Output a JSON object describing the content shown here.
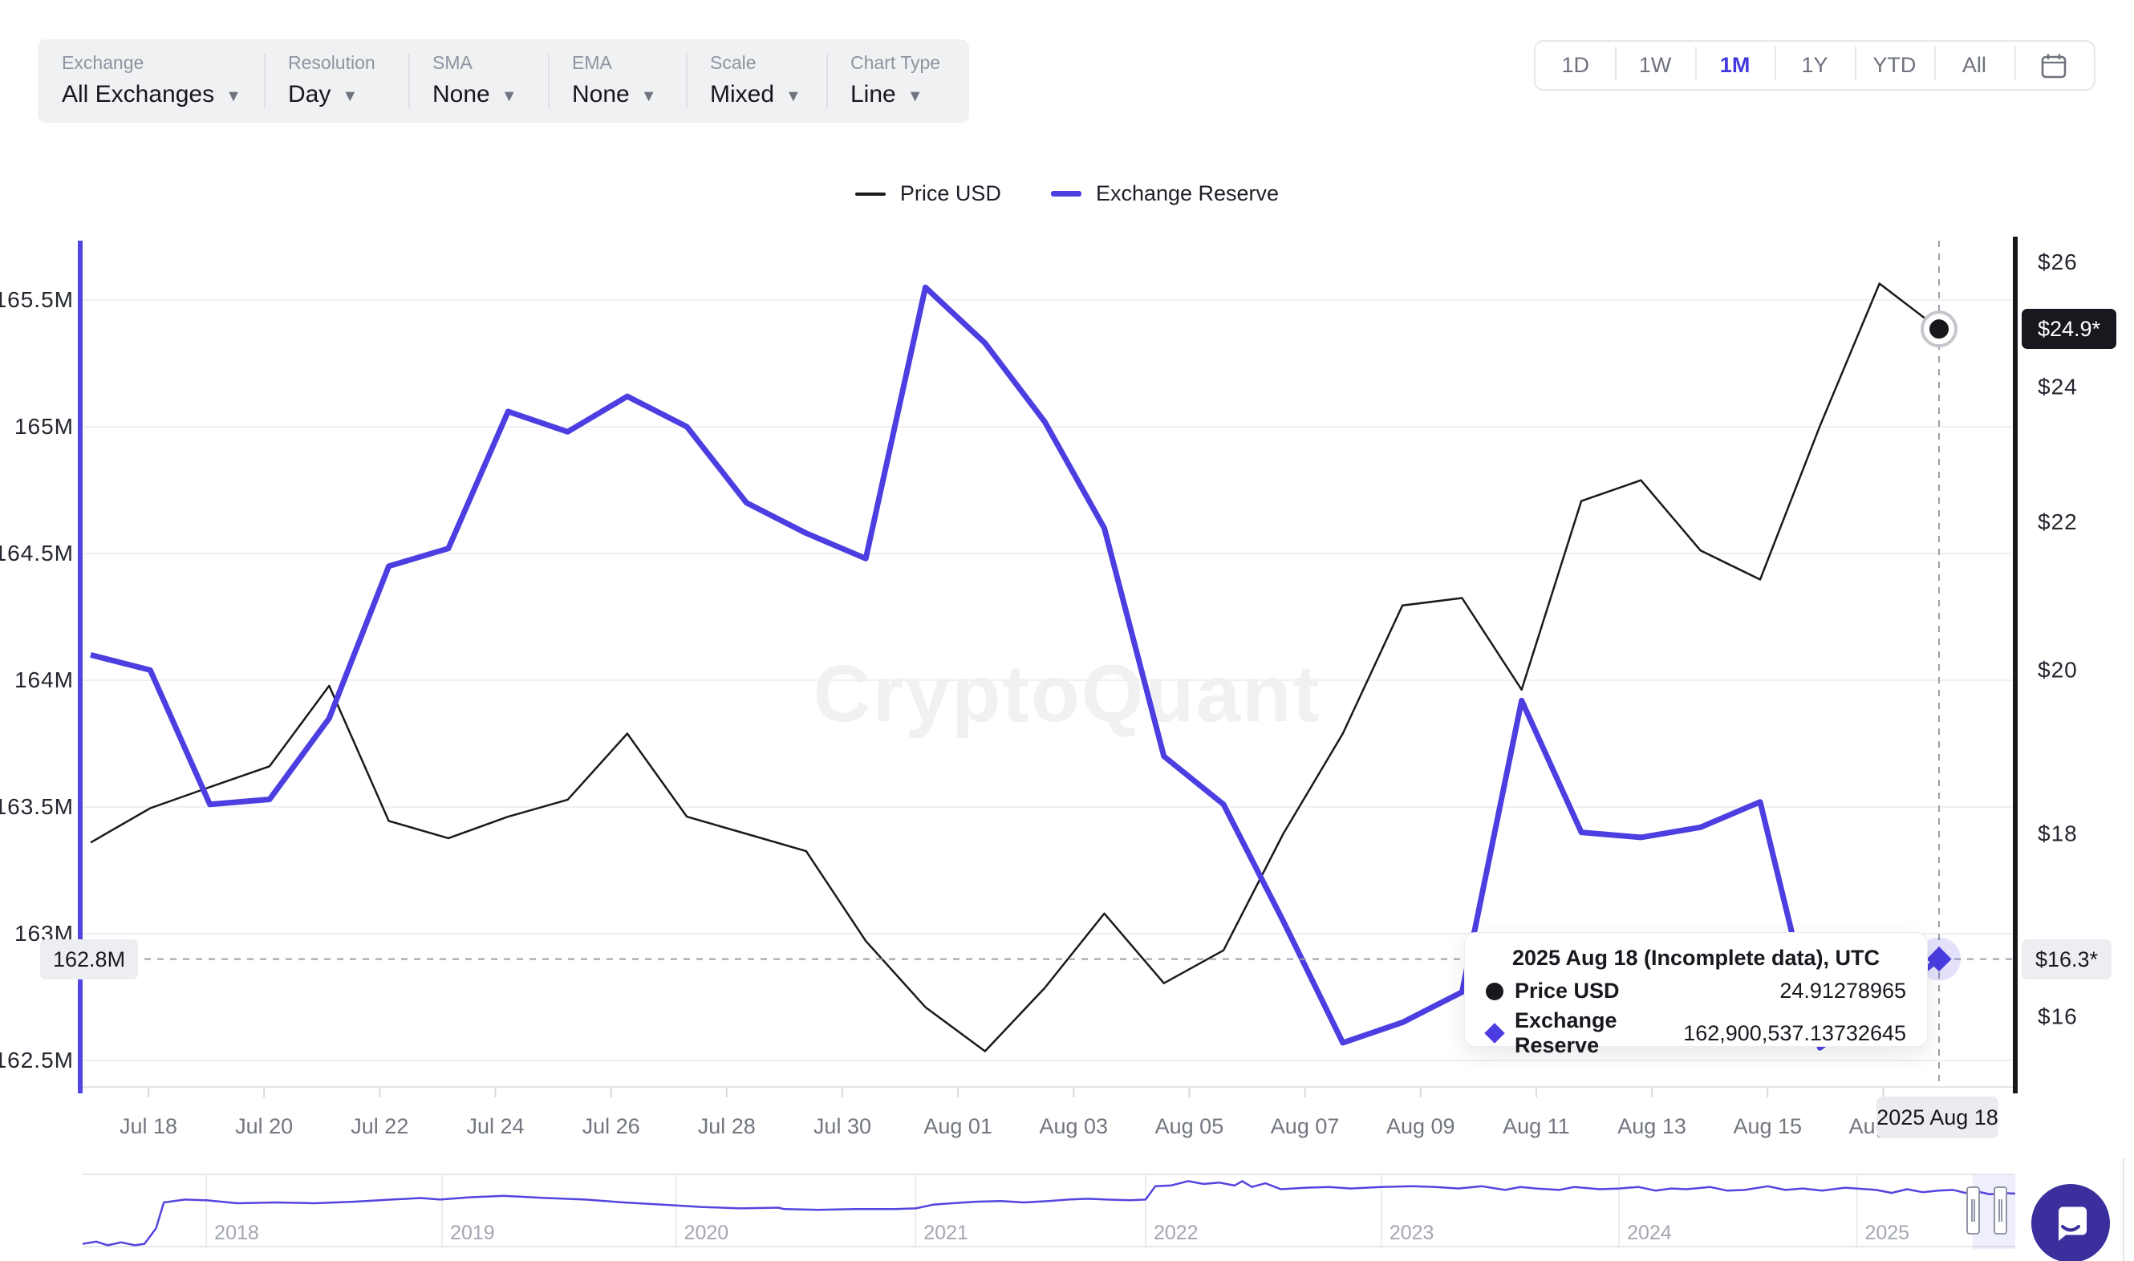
{
  "toolbar": {
    "groups": [
      {
        "label": "Exchange",
        "value": "All Exchanges"
      },
      {
        "label": "Resolution",
        "value": "Day"
      },
      {
        "label": "SMA",
        "value": "None"
      },
      {
        "label": "EMA",
        "value": "None"
      },
      {
        "label": "Scale",
        "value": "Mixed"
      },
      {
        "label": "Chart Type",
        "value": "Line"
      }
    ]
  },
  "range_selector": {
    "options": [
      "1D",
      "1W",
      "1M",
      "1Y",
      "YTD",
      "All"
    ],
    "active": "1M",
    "active_color": "#4338e0",
    "calendar_icon": "calendar-icon"
  },
  "legend": {
    "items": [
      {
        "label": "Price USD",
        "color": "#1a1a1a"
      },
      {
        "label": "Exchange Reserve",
        "color": "#4c3ee0"
      }
    ]
  },
  "watermark": "CryptoQuant",
  "chart_data": {
    "type": "line",
    "title": "",
    "x": [
      "Jul 18",
      "Jul 19",
      "Jul 20",
      "Jul 21",
      "Jul 22",
      "Jul 23",
      "Jul 24",
      "Jul 25",
      "Jul 26",
      "Jul 27",
      "Jul 28",
      "Jul 29",
      "Jul 30",
      "Jul 31",
      "Aug 01",
      "Aug 02",
      "Aug 03",
      "Aug 04",
      "Aug 05",
      "Aug 06",
      "Aug 07",
      "Aug 08",
      "Aug 09",
      "Aug 10",
      "Aug 11",
      "Aug 12",
      "Aug 13",
      "Aug 14",
      "Aug 15",
      "Aug 16",
      "Aug 17",
      "Aug 18"
    ],
    "x_tick_labels": [
      "Jul 18",
      "Jul 20",
      "Jul 22",
      "Jul 24",
      "Jul 26",
      "Jul 28",
      "Jul 30",
      "Aug 01",
      "Aug 03",
      "Aug 05",
      "Aug 07",
      "Aug 09",
      "Aug 11",
      "Aug 13",
      "Aug 15",
      "Aug 17"
    ],
    "series": [
      {
        "name": "Price USD",
        "axis": "right",
        "color": "#1a1a1a",
        "width": 2.5,
        "values": [
          17.9,
          18.3,
          18.55,
          18.8,
          19.8,
          18.15,
          17.95,
          18.2,
          18.4,
          19.2,
          18.2,
          18.0,
          17.8,
          16.8,
          16.1,
          15.65,
          16.3,
          17.1,
          16.35,
          16.7,
          18.0,
          19.2,
          20.85,
          20.95,
          19.75,
          22.3,
          22.6,
          21.6,
          21.2,
          23.4,
          25.65,
          24.91
        ]
      },
      {
        "name": "Exchange Reserve",
        "axis": "left",
        "color": "#4c3ee0",
        "width": 7,
        "values": [
          164.1,
          164.04,
          163.51,
          163.53,
          163.85,
          164.45,
          164.52,
          165.06,
          164.98,
          165.12,
          165.0,
          164.7,
          164.58,
          164.48,
          165.55,
          165.33,
          165.02,
          164.6,
          163.7,
          163.51,
          163.05,
          162.57,
          162.65,
          162.77,
          163.92,
          163.4,
          163.38,
          163.42,
          163.52,
          162.55,
          162.72,
          162.9
        ]
      }
    ],
    "left_axis": {
      "scale": "linear",
      "unit": "M tokens",
      "ticks": [
        165.5,
        165,
        164.5,
        164,
        163.5,
        163,
        162.5
      ],
      "tick_labels": [
        "165.5M",
        "165M",
        "164.5M",
        "164M",
        "163.5M",
        "163M",
        "162.5M"
      ],
      "range": [
        162.45,
        165.7
      ]
    },
    "right_axis": {
      "scale": "log",
      "unit": "USD",
      "ticks": [
        26,
        24,
        22,
        20,
        18,
        16
      ],
      "tick_labels": [
        "$26",
        "$24",
        "$22",
        "$20",
        "$18",
        "$16"
      ],
      "range": [
        15.5,
        26.4
      ]
    },
    "grid": true,
    "legend_position": "top",
    "last_point": {
      "date": "2025 Aug 18",
      "price_usd": 24.91278965,
      "exchange_reserve": 162900537.13732645
    }
  },
  "crosshair": {
    "x_label": "2025 Aug 18",
    "left_badge": "162.8M",
    "right_badge_top": "$24.9*",
    "right_badge_bottom": "$16.3*"
  },
  "tooltip": {
    "title": "2025 Aug 18 (Incomplete data), UTC",
    "rows": [
      {
        "label": "Price USD",
        "value": "24.91278965",
        "marker": "circle",
        "color": "#17191f"
      },
      {
        "label": "Exchange Reserve",
        "value": "162,900,537.13732645",
        "marker": "diamond",
        "color": "#4a3ce0"
      }
    ]
  },
  "navigator": {
    "years": [
      "2018",
      "2019",
      "2020",
      "2021",
      "2022",
      "2023",
      "2024",
      "2025"
    ],
    "year_fracs": [
      0.064,
      0.186,
      0.307,
      0.431,
      0.55,
      0.672,
      0.795,
      0.918
    ],
    "line_color": "#5444df",
    "profile": [
      [
        0,
        0.93
      ],
      [
        0.007,
        0.9
      ],
      [
        0.013,
        0.95
      ],
      [
        0.02,
        0.91
      ],
      [
        0.027,
        0.95
      ],
      [
        0.032,
        0.93
      ],
      [
        0.038,
        0.72
      ],
      [
        0.042,
        0.37
      ],
      [
        0.053,
        0.33
      ],
      [
        0.064,
        0.34
      ],
      [
        0.08,
        0.38
      ],
      [
        0.1,
        0.37
      ],
      [
        0.12,
        0.38
      ],
      [
        0.14,
        0.36
      ],
      [
        0.16,
        0.33
      ],
      [
        0.175,
        0.31
      ],
      [
        0.185,
        0.33
      ],
      [
        0.2,
        0.3
      ],
      [
        0.218,
        0.28
      ],
      [
        0.24,
        0.31
      ],
      [
        0.26,
        0.33
      ],
      [
        0.28,
        0.37
      ],
      [
        0.3,
        0.4
      ],
      [
        0.307,
        0.41
      ],
      [
        0.32,
        0.43
      ],
      [
        0.34,
        0.45
      ],
      [
        0.36,
        0.44
      ],
      [
        0.363,
        0.46
      ],
      [
        0.38,
        0.47
      ],
      [
        0.4,
        0.46
      ],
      [
        0.42,
        0.46
      ],
      [
        0.431,
        0.45
      ],
      [
        0.44,
        0.4
      ],
      [
        0.45,
        0.38
      ],
      [
        0.462,
        0.36
      ],
      [
        0.475,
        0.35
      ],
      [
        0.487,
        0.37
      ],
      [
        0.5,
        0.35
      ],
      [
        0.51,
        0.33
      ],
      [
        0.52,
        0.32
      ],
      [
        0.53,
        0.33
      ],
      [
        0.542,
        0.34
      ],
      [
        0.55,
        0.33
      ],
      [
        0.555,
        0.15
      ],
      [
        0.563,
        0.14
      ],
      [
        0.572,
        0.08
      ],
      [
        0.58,
        0.12
      ],
      [
        0.588,
        0.1
      ],
      [
        0.596,
        0.14
      ],
      [
        0.6,
        0.08
      ],
      [
        0.605,
        0.16
      ],
      [
        0.612,
        0.11
      ],
      [
        0.62,
        0.19
      ],
      [
        0.633,
        0.17
      ],
      [
        0.645,
        0.16
      ],
      [
        0.656,
        0.18
      ],
      [
        0.672,
        0.16
      ],
      [
        0.688,
        0.15
      ],
      [
        0.7,
        0.16
      ],
      [
        0.712,
        0.18
      ],
      [
        0.724,
        0.15
      ],
      [
        0.736,
        0.2
      ],
      [
        0.744,
        0.16
      ],
      [
        0.752,
        0.18
      ],
      [
        0.764,
        0.2
      ],
      [
        0.772,
        0.16
      ],
      [
        0.785,
        0.19
      ],
      [
        0.795,
        0.18
      ],
      [
        0.805,
        0.16
      ],
      [
        0.814,
        0.21
      ],
      [
        0.822,
        0.18
      ],
      [
        0.83,
        0.19
      ],
      [
        0.842,
        0.16
      ],
      [
        0.851,
        0.21
      ],
      [
        0.86,
        0.2
      ],
      [
        0.872,
        0.15
      ],
      [
        0.881,
        0.2
      ],
      [
        0.89,
        0.18
      ],
      [
        0.9,
        0.21
      ],
      [
        0.912,
        0.17
      ],
      [
        0.928,
        0.2
      ],
      [
        0.936,
        0.24
      ],
      [
        0.944,
        0.19
      ],
      [
        0.952,
        0.23
      ],
      [
        0.96,
        0.21
      ],
      [
        0.968,
        0.2
      ],
      [
        0.974,
        0.24
      ],
      [
        0.98,
        0.22
      ],
      [
        0.987,
        0.26
      ],
      [
        0.993,
        0.24
      ],
      [
        1,
        0.25
      ]
    ],
    "selection_fracs": [
      0.978,
      0.992
    ]
  }
}
